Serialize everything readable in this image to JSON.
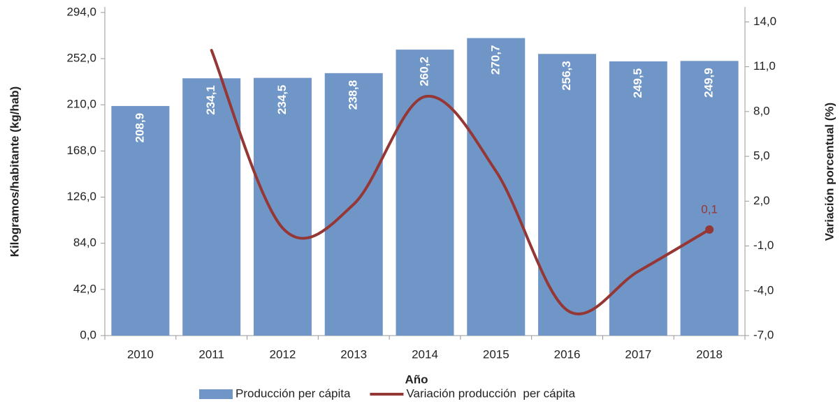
{
  "chart_data": {
    "type": "bar_line",
    "x_label": "Año",
    "y_label": "Kilogramos/habitante (kg/hab)",
    "y2_label": "Variación porcentual (%)",
    "categories": [
      "2010",
      "2011",
      "2012",
      "2013",
      "2014",
      "2015",
      "2016",
      "2017",
      "2018"
    ],
    "series": [
      {
        "name": "Producción per cápita",
        "type": "bar",
        "color": "#7096c8",
        "values": [
          208.9,
          234.1,
          234.5,
          238.8,
          260.2,
          270.7,
          256.3,
          249.5,
          249.9
        ],
        "value_labels": [
          "208,9",
          "234,1",
          "234,5",
          "238,8",
          "260,2",
          "270,7",
          "256,3",
          "249,5",
          "249,9"
        ]
      },
      {
        "name": "Variación producción  per cápita",
        "type": "line",
        "axis": "y2",
        "color": "#953735",
        "smooth": true,
        "values": [
          null,
          12.1,
          0.2,
          1.8,
          9.0,
          4.0,
          -5.3,
          -2.7,
          0.1
        ],
        "value_labels": [
          null,
          null,
          null,
          null,
          null,
          null,
          null,
          null,
          "0,1"
        ]
      }
    ],
    "ylim": [
      0,
      299
    ],
    "yticks": [
      {
        "value": 0,
        "label": "0,0"
      },
      {
        "value": 42,
        "label": "42,0"
      },
      {
        "value": 84,
        "label": "84,0"
      },
      {
        "value": 126,
        "label": "126,0"
      },
      {
        "value": 168,
        "label": "168,0"
      },
      {
        "value": 210,
        "label": "210,0"
      },
      {
        "value": 252,
        "label": "252,0"
      },
      {
        "value": 294,
        "label": "294,0"
      }
    ],
    "y2lim": [
      -7,
      15
    ],
    "y2ticks": [
      {
        "value": -7,
        "label": "-7,0"
      },
      {
        "value": -4,
        "label": "-4,0"
      },
      {
        "value": -1,
        "label": "-1,0"
      },
      {
        "value": 2,
        "label": "2,0"
      },
      {
        "value": 5,
        "label": "5,0"
      },
      {
        "value": 8,
        "label": "8,0"
      },
      {
        "value": 11,
        "label": "11,0"
      },
      {
        "value": 14,
        "label": "14,0"
      }
    ],
    "grid": false,
    "legend": "bottom"
  }
}
